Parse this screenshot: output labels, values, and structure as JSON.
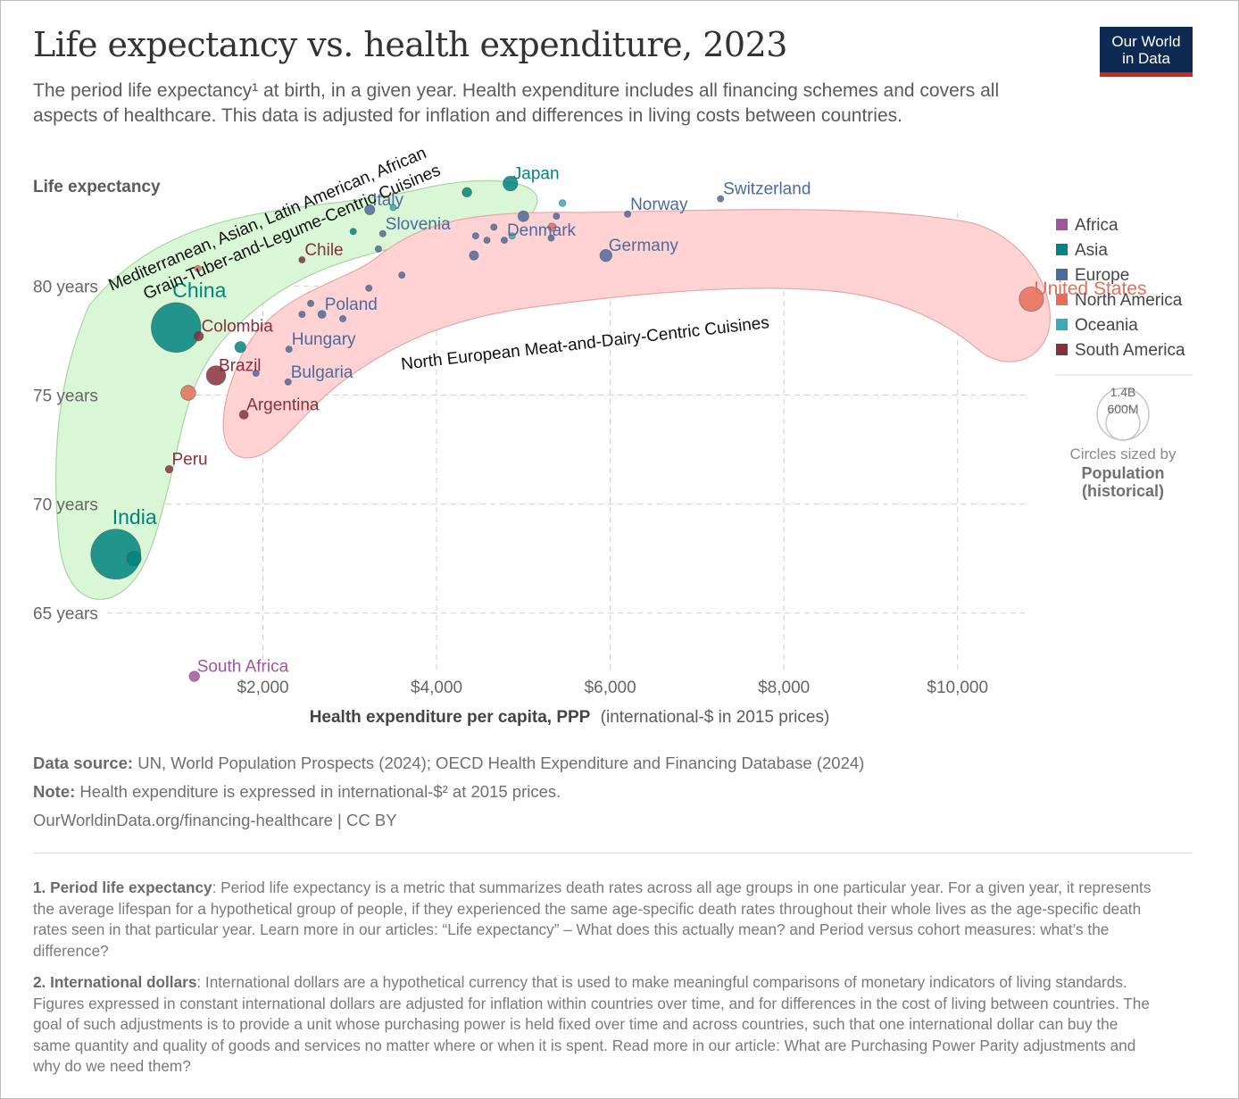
{
  "header": {
    "title": "Life expectancy vs. health expenditure, 2023",
    "subtitle": "The period life expectancy¹ at birth, in a given year. Health expenditure includes all financing schemes and covers all aspects of healthcare. This data is adjusted for inflation and differences in living costs between countries.",
    "logo_line1": "Our World",
    "logo_line2": "in Data"
  },
  "colors": {
    "Africa": "#a2559c",
    "Asia": "#00847e",
    "Europe": "#4c6a9c",
    "North America": "#e56e5a",
    "Oceania": "#38aaba",
    "South America": "#883039",
    "green_band": "#d9f7d6",
    "red_band": "#ffd3d3"
  },
  "chart_data": {
    "type": "scatter",
    "title": "Life expectancy vs. health expenditure, 2023",
    "xlabel_bold": "Health expenditure per capita, PPP",
    "xlabel_rest": "(international-$ in 2015 prices)",
    "ylabel": "Life expectancy",
    "xlim": [
      0,
      11000
    ],
    "ylim": [
      62,
      83.7
    ],
    "x_ticks": [
      {
        "value": 2000,
        "label": "$2,000"
      },
      {
        "value": 4000,
        "label": "$4,000"
      },
      {
        "value": 6000,
        "label": "$6,000"
      },
      {
        "value": 8000,
        "label": "$8,000"
      },
      {
        "value": 10000,
        "label": "$10,000"
      }
    ],
    "y_ticks": [
      {
        "value": 65,
        "label": "65 years"
      },
      {
        "value": 70,
        "label": "70 years"
      },
      {
        "value": 75,
        "label": "75 years"
      },
      {
        "value": 80,
        "label": "80 years"
      }
    ],
    "grid": true,
    "legend_position": "right",
    "legend": [
      "Africa",
      "Asia",
      "Europe",
      "North America",
      "Oceania",
      "South America"
    ],
    "size_legend": {
      "big": "1.4B",
      "small": "600M",
      "caption1": "Circles sized by",
      "caption2": "Population",
      "caption3": "(historical)"
    },
    "points": [
      {
        "label": "India",
        "region": "Asia",
        "x": 306,
        "y": 67.7,
        "pop": 1430
      },
      {
        "label": "",
        "region": "Asia",
        "x": 515,
        "y": 67.5,
        "pop": 120
      },
      {
        "label": "China",
        "region": "Asia",
        "x": 1000,
        "y": 78.1,
        "pop": 1410
      },
      {
        "label": "Colombia",
        "region": "South America",
        "x": 1260,
        "y": 77.7,
        "pop": 52
      },
      {
        "label": "",
        "region": "North America",
        "x": 1140,
        "y": 75.1,
        "pop": 128
      },
      {
        "label": "Brazil",
        "region": "South America",
        "x": 1460,
        "y": 75.9,
        "pop": 216
      },
      {
        "label": "",
        "region": "Asia",
        "x": 1740,
        "y": 77.2,
        "pop": 70
      },
      {
        "label": "Argentina",
        "region": "South America",
        "x": 1780,
        "y": 74.1,
        "pop": 46
      },
      {
        "label": "Peru",
        "region": "South America",
        "x": 920,
        "y": 71.6,
        "pop": 34
      },
      {
        "label": "South Africa",
        "region": "Africa",
        "x": 1210,
        "y": 62.1,
        "pop": 62
      },
      {
        "label": "Chile",
        "region": "South America",
        "x": 2450,
        "y": 81.2,
        "pop": 20
      },
      {
        "label": "",
        "region": "North America",
        "x": 1250,
        "y": 80.8,
        "pop": 5
      },
      {
        "label": "Poland",
        "region": "Europe",
        "x": 2680,
        "y": 78.7,
        "pop": 37
      },
      {
        "label": "",
        "region": "Europe",
        "x": 2450,
        "y": 78.7,
        "pop": 10
      },
      {
        "label": "",
        "region": "Europe",
        "x": 2550,
        "y": 79.2,
        "pop": 6
      },
      {
        "label": "",
        "region": "Europe",
        "x": 2920,
        "y": 78.5,
        "pop": 5
      },
      {
        "label": "Hungary",
        "region": "Europe",
        "x": 2300,
        "y": 77.1,
        "pop": 10
      },
      {
        "label": "",
        "region": "Europe",
        "x": 1920,
        "y": 76.0,
        "pop": 6
      },
      {
        "label": "Bulgaria",
        "region": "Europe",
        "x": 2290,
        "y": 75.6,
        "pop": 6
      },
      {
        "label": "",
        "region": "Europe",
        "x": 3220,
        "y": 79.9,
        "pop": 4
      },
      {
        "label": "Italy",
        "region": "Europe",
        "x": 3230,
        "y": 83.5,
        "pop": 59
      },
      {
        "label": "",
        "region": "Oceania",
        "x": 3500,
        "y": 83.6,
        "pop": 5
      },
      {
        "label": "",
        "region": "Asia",
        "x": 3040,
        "y": 82.5,
        "pop": 5
      },
      {
        "label": "Slovenia",
        "region": "Europe",
        "x": 3380,
        "y": 82.4,
        "pop": 2
      },
      {
        "label": "",
        "region": "Europe",
        "x": 3330,
        "y": 81.7,
        "pop": 10
      },
      {
        "label": "",
        "region": "Europe",
        "x": 3600,
        "y": 80.5,
        "pop": 10
      },
      {
        "label": "",
        "region": "Asia",
        "x": 4350,
        "y": 84.3,
        "pop": 52
      },
      {
        "label": "Japan",
        "region": "Asia",
        "x": 4850,
        "y": 84.7,
        "pop": 124
      },
      {
        "label": "",
        "region": "Oceania",
        "x": 5450,
        "y": 83.8,
        "pop": 27
      },
      {
        "label": "",
        "region": "Europe",
        "x": 5000,
        "y": 83.2,
        "pop": 68
      },
      {
        "label": "",
        "region": "Europe",
        "x": 5380,
        "y": 83.2,
        "pop": 10
      },
      {
        "label": "Denmark",
        "region": "Europe",
        "x": 4780,
        "y": 82.1,
        "pop": 6
      },
      {
        "label": "",
        "region": "Europe",
        "x": 4450,
        "y": 82.3,
        "pop": 10
      },
      {
        "label": "",
        "region": "Europe",
        "x": 4580,
        "y": 82.1,
        "pop": 10
      },
      {
        "label": "",
        "region": "Europe",
        "x": 4660,
        "y": 82.7,
        "pop": 9
      },
      {
        "label": "",
        "region": "Oceania",
        "x": 4870,
        "y": 82.3,
        "pop": 5
      },
      {
        "label": "",
        "region": "North America",
        "x": 5330,
        "y": 82.7,
        "pop": 40
      },
      {
        "label": "",
        "region": "Europe",
        "x": 5320,
        "y": 82.2,
        "pop": 17
      },
      {
        "label": "",
        "region": "Europe",
        "x": 4430,
        "y": 81.4,
        "pop": 48
      },
      {
        "label": "Germany",
        "region": "Europe",
        "x": 5950,
        "y": 81.4,
        "pop": 84
      },
      {
        "label": "Norway",
        "region": "Europe",
        "x": 6200,
        "y": 83.3,
        "pop": 5
      },
      {
        "label": "Switzerland",
        "region": "Europe",
        "x": 7270,
        "y": 84.0,
        "pop": 9
      },
      {
        "label": "United States",
        "region": "North America",
        "x": 10850,
        "y": 79.4,
        "pop": 340
      }
    ],
    "annotations": {
      "green_group": [
        "Mediterranean, Asian, Latin American, African",
        "Grain-Tuber-and-Legume-Centric Cuisines"
      ],
      "red_group": "North European Meat-and-Dairy-Centric Cuisines"
    }
  },
  "footer": {
    "source_label": "Data source:",
    "source_text": "UN, World Population Prospects (2024); OECD Health Expenditure and Financing Database (2024)",
    "note_label": "Note:",
    "note_text": "Health expenditure is expressed in international-$² at 2015 prices.",
    "url": "OurWorldinData.org/financing-healthcare | CC BY"
  },
  "footnotes": [
    {
      "label": "1. Period life expectancy",
      "text": ": Period life expectancy is a metric that summarizes death rates across all age groups in one particular year. For a given year, it represents the average lifespan for a hypothetical group of people, if they experienced the same age-specific death rates throughout their whole lives as the age-specific death rates seen in that particular year. Learn more in our articles: “Life expectancy” – What does this actually mean? and Period versus cohort measures: what’s the difference?"
    },
    {
      "label": "2. International dollars",
      "text": ": International dollars are a hypothetical currency that is used to make meaningful comparisons of monetary indicators of living standards. Figures expressed in constant international dollars are adjusted for inflation within countries over time, and for differences in the cost of living between countries. The goal of such adjustments is to provide a unit whose purchasing power is held fixed over time and across countries, such that one international dollar can buy the same quantity and quality of goods and services no matter where or when it is spent. Read more in our article: What are Purchasing Power Parity adjustments and why do we need them?"
    }
  ]
}
